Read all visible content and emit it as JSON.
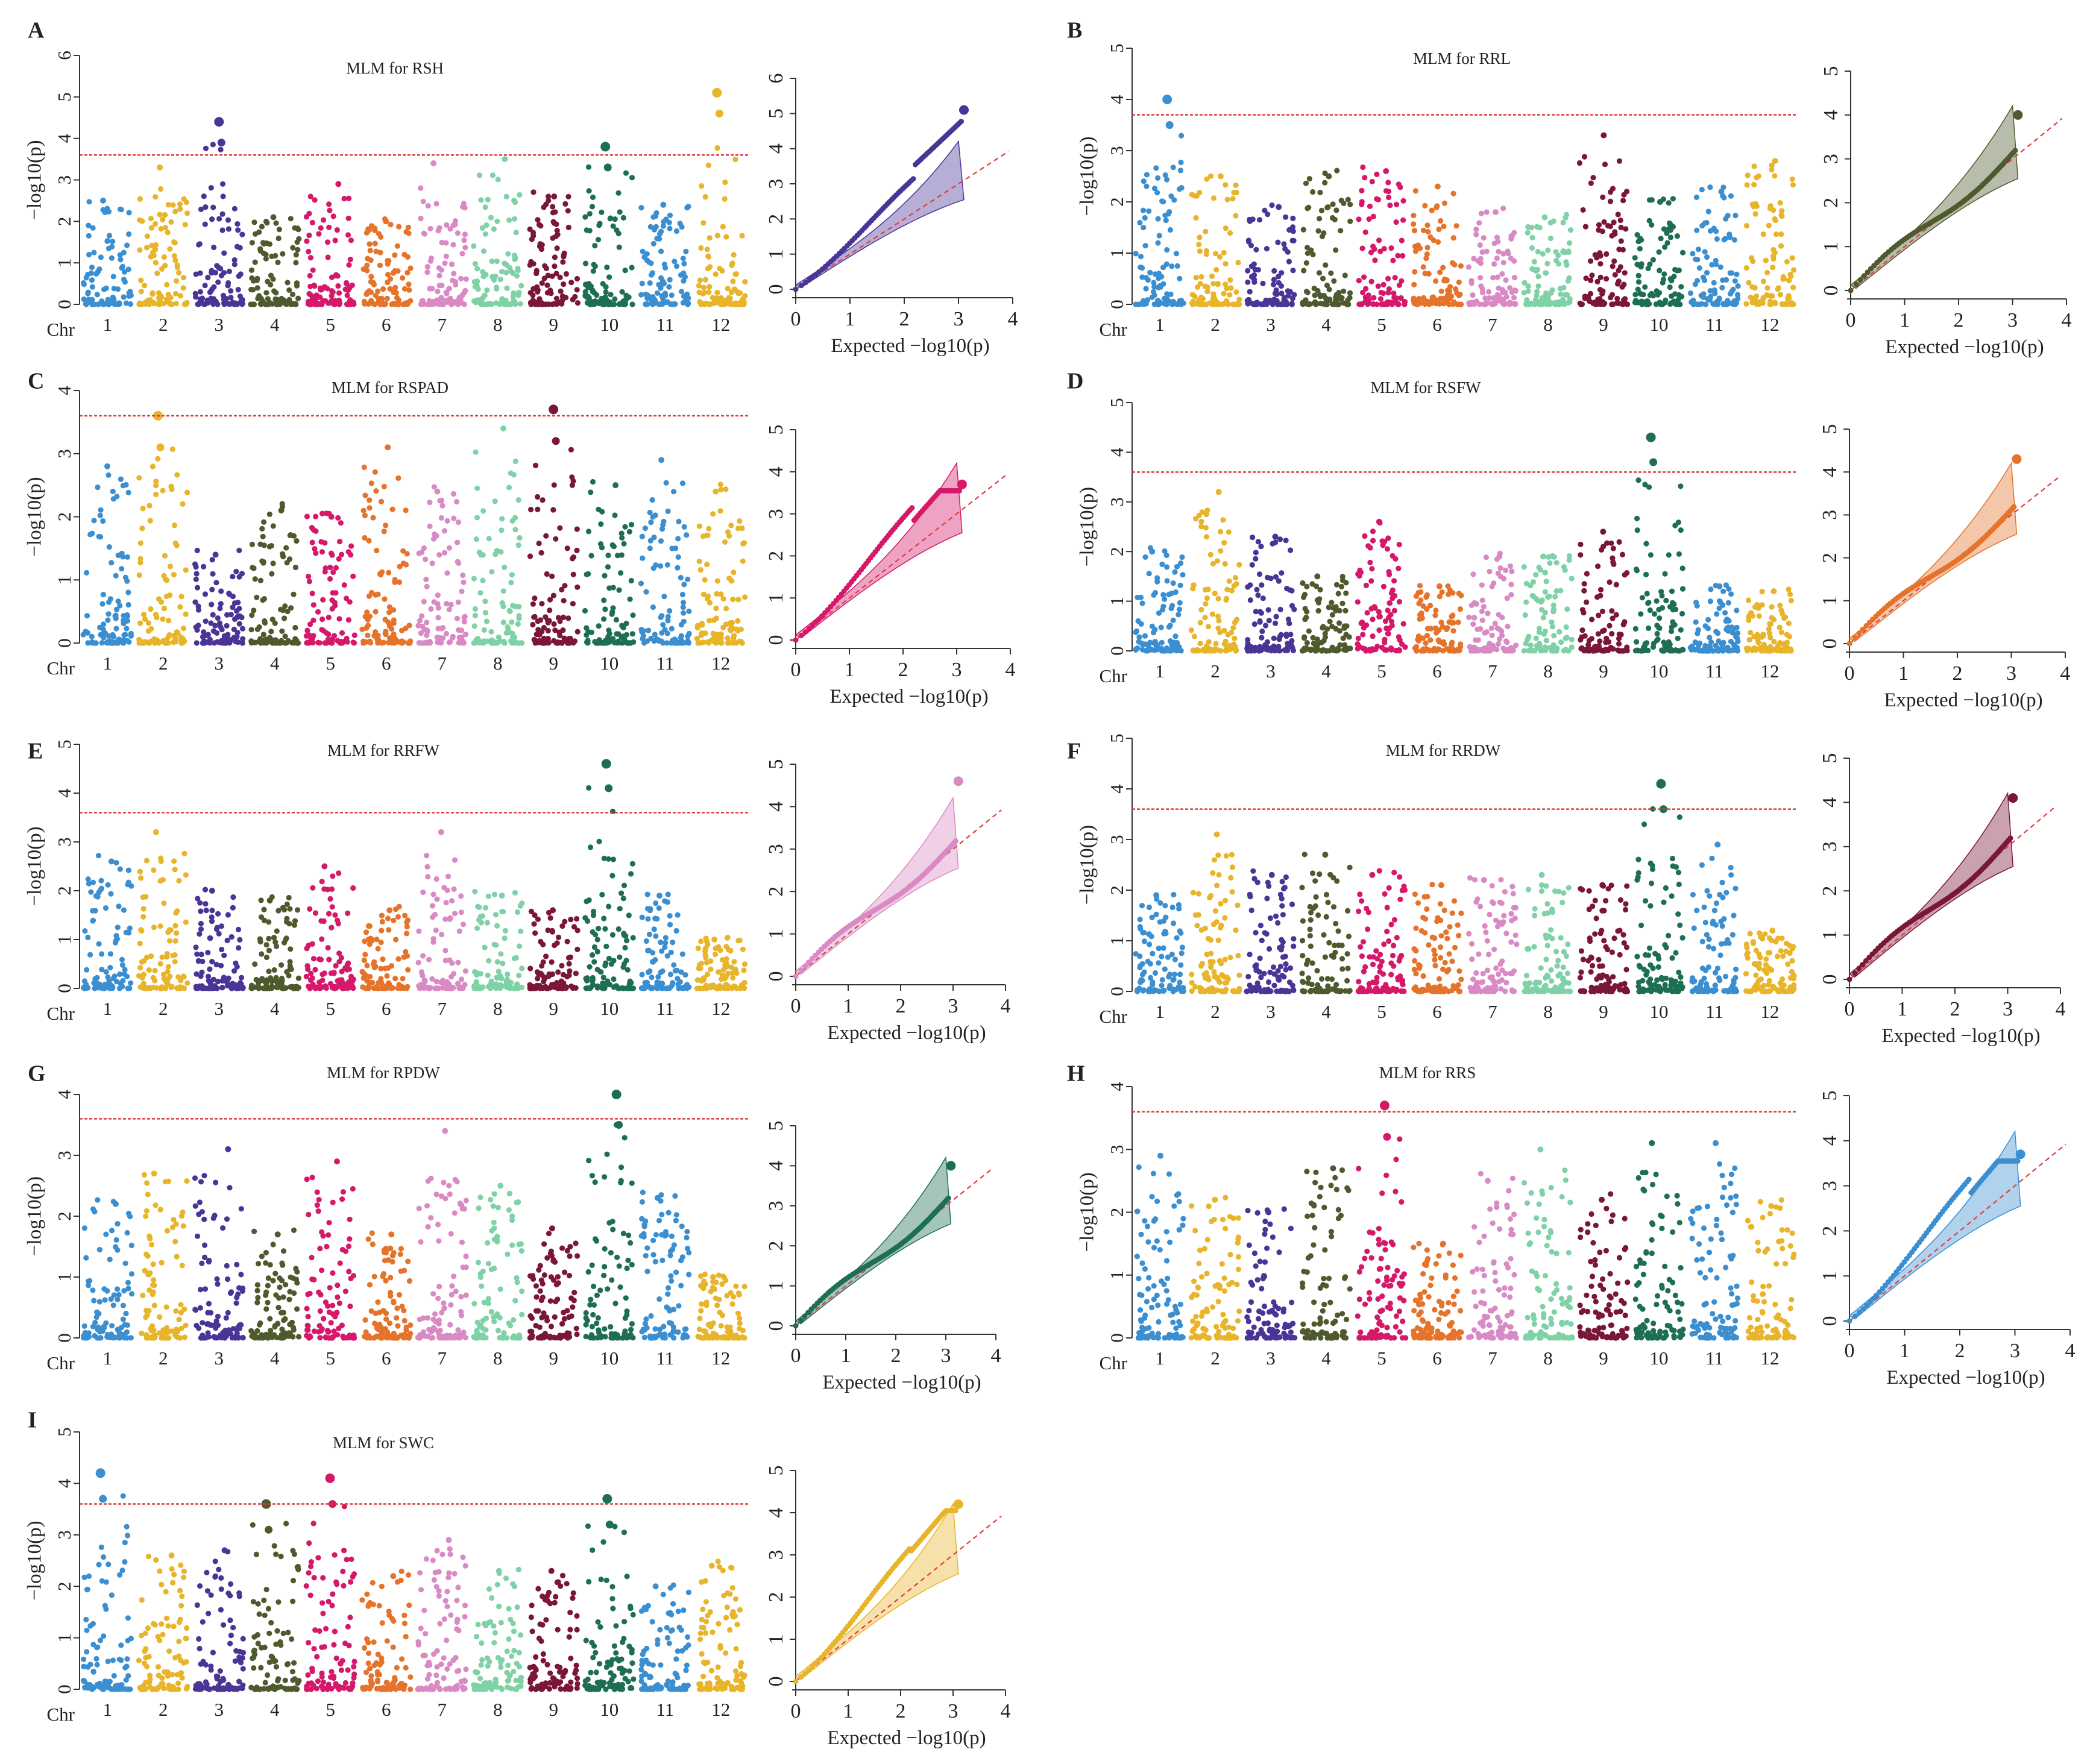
{
  "figure": {
    "chromosome_colors": [
      "#3b8fd1",
      "#e8b42a",
      "#4a3596",
      "#4e5a2e",
      "#d6186b",
      "#e5732a",
      "#d98ac4",
      "#7fd1a6",
      "#7a1638",
      "#1e6e55",
      "#3b8fd1",
      "#e8b42a"
    ],
    "threshold_color": "#e03b3b",
    "chr_axis_label": "Chr",
    "chromosomes": [
      "1",
      "2",
      "3",
      "4",
      "5",
      "6",
      "7",
      "8",
      "9",
      "10",
      "11",
      "12"
    ],
    "ylabel": "−log10(p)",
    "qq_xlabel": "Expected −log10(p)",
    "qq_xticks": [
      "0",
      "1",
      "2",
      "3",
      "4"
    ]
  },
  "chart_data": [
    {
      "panel": "A",
      "type": "scatter",
      "title": "MLM for RSH",
      "ylim": [
        0,
        6
      ],
      "yticks": [
        "0",
        "1",
        "2",
        "3",
        "4",
        "5",
        "6"
      ],
      "threshold": 3.6,
      "peaks": [
        [
          1,
          2.5
        ],
        [
          2,
          3.3
        ],
        [
          3,
          4.4
        ],
        [
          4,
          2.1
        ],
        [
          5,
          2.9
        ],
        [
          6,
          2.0
        ],
        [
          7,
          3.4
        ],
        [
          8,
          3.5
        ],
        [
          9,
          2.6
        ],
        [
          10,
          3.8
        ],
        [
          11,
          2.4
        ],
        [
          12,
          5.1
        ]
      ],
      "qq": {
        "ylim": [
          0,
          6
        ],
        "yticks": [
          "0",
          "1",
          "2",
          "3",
          "4",
          "5",
          "6"
        ],
        "color": "#4a3596",
        "max_obs": 5.1,
        "inflated": true
      }
    },
    {
      "panel": "B",
      "type": "scatter",
      "title": "MLM for RRL",
      "ylim": [
        0,
        5
      ],
      "yticks": [
        "0",
        "1",
        "2",
        "3",
        "4",
        "5"
      ],
      "threshold": 3.7,
      "peaks": [
        [
          1,
          4.0
        ],
        [
          2,
          2.5
        ],
        [
          3,
          1.9
        ],
        [
          4,
          2.5
        ],
        [
          5,
          2.6
        ],
        [
          6,
          2.3
        ],
        [
          7,
          1.8
        ],
        [
          8,
          1.7
        ],
        [
          9,
          3.3
        ],
        [
          10,
          2.0
        ],
        [
          11,
          2.2
        ],
        [
          12,
          2.8
        ]
      ],
      "qq": {
        "ylim": [
          0,
          5
        ],
        "yticks": [
          "0",
          "1",
          "2",
          "3",
          "4",
          "5"
        ],
        "color": "#4e5a2e",
        "max_obs": 4.0,
        "inflated": false
      }
    },
    {
      "panel": "C",
      "type": "scatter",
      "title": "MLM for RSPAD",
      "ylim": [
        0,
        4
      ],
      "yticks": [
        "0",
        "1",
        "2",
        "3",
        "4"
      ],
      "threshold": 3.6,
      "peaks": [
        [
          1,
          2.8
        ],
        [
          2,
          3.6
        ],
        [
          3,
          1.4
        ],
        [
          4,
          2.1
        ],
        [
          5,
          2.0
        ],
        [
          6,
          3.1
        ],
        [
          7,
          2.4
        ],
        [
          8,
          3.4
        ],
        [
          9,
          3.7
        ],
        [
          10,
          2.5
        ],
        [
          11,
          2.9
        ],
        [
          12,
          2.4
        ]
      ],
      "qq": {
        "ylim": [
          0,
          5
        ],
        "yticks": [
          "0",
          "1",
          "2",
          "3",
          "4",
          "5"
        ],
        "color": "#d6186b",
        "max_obs": 3.7,
        "inflated": true
      }
    },
    {
      "panel": "D",
      "type": "scatter",
      "title": "MLM for RSFW",
      "ylim": [
        0,
        5
      ],
      "yticks": [
        "0",
        "1",
        "2",
        "3",
        "4",
        "5"
      ],
      "threshold": 3.6,
      "peaks": [
        [
          1,
          2.0
        ],
        [
          2,
          3.2
        ],
        [
          3,
          2.3
        ],
        [
          4,
          1.5
        ],
        [
          5,
          2.6
        ],
        [
          6,
          1.3
        ],
        [
          7,
          1.9
        ],
        [
          8,
          1.9
        ],
        [
          9,
          2.4
        ],
        [
          10,
          4.3
        ],
        [
          11,
          1.3
        ],
        [
          12,
          1.2
        ]
      ],
      "qq": {
        "ylim": [
          0,
          5
        ],
        "yticks": [
          "0",
          "1",
          "2",
          "3",
          "4",
          "5"
        ],
        "color": "#e5732a",
        "max_obs": 4.3,
        "inflated": false
      }
    },
    {
      "panel": "E",
      "type": "scatter",
      "title": "MLM for RRFW",
      "ylim": [
        0,
        5
      ],
      "yticks": [
        "0",
        "1",
        "2",
        "3",
        "4",
        "5"
      ],
      "threshold": 3.6,
      "peaks": [
        [
          1,
          2.6
        ],
        [
          2,
          3.2
        ],
        [
          3,
          2.0
        ],
        [
          4,
          1.8
        ],
        [
          5,
          2.5
        ],
        [
          6,
          1.6
        ],
        [
          7,
          3.2
        ],
        [
          8,
          1.9
        ],
        [
          9,
          1.6
        ],
        [
          10,
          4.6
        ],
        [
          11,
          1.9
        ],
        [
          12,
          1.0
        ]
      ],
      "qq": {
        "ylim": [
          0,
          5
        ],
        "yticks": [
          "0",
          "1",
          "2",
          "3",
          "4",
          "5"
        ],
        "color": "#d98ac4",
        "max_obs": 4.6,
        "inflated": false
      }
    },
    {
      "panel": "F",
      "type": "scatter",
      "title": "MLM for RRDW",
      "ylim": [
        0,
        5
      ],
      "yticks": [
        "0",
        "1",
        "2",
        "3",
        "4",
        "5"
      ],
      "threshold": 3.6,
      "peaks": [
        [
          1,
          1.9
        ],
        [
          2,
          3.1
        ],
        [
          3,
          2.3
        ],
        [
          4,
          2.7
        ],
        [
          5,
          2.3
        ],
        [
          6,
          2.1
        ],
        [
          7,
          2.2
        ],
        [
          8,
          2.3
        ],
        [
          9,
          2.1
        ],
        [
          10,
          4.1
        ],
        [
          11,
          2.9
        ],
        [
          12,
          1.2
        ]
      ],
      "qq": {
        "ylim": [
          0,
          5
        ],
        "yticks": [
          "0",
          "1",
          "2",
          "3",
          "4",
          "5"
        ],
        "color": "#7a1638",
        "max_obs": 4.1,
        "inflated": false
      }
    },
    {
      "panel": "G",
      "type": "scatter",
      "title": "MLM for RPDW",
      "ylim": [
        0,
        4
      ],
      "yticks": [
        "0",
        "1",
        "2",
        "3",
        "4"
      ],
      "threshold": 3.6,
      "peaks": [
        [
          1,
          2.2
        ],
        [
          2,
          2.7
        ],
        [
          3,
          3.1
        ],
        [
          4,
          1.7
        ],
        [
          5,
          2.9
        ],
        [
          6,
          1.7
        ],
        [
          7,
          3.4
        ],
        [
          8,
          2.5
        ],
        [
          9,
          1.8
        ],
        [
          10,
          4.0
        ],
        [
          11,
          2.3
        ],
        [
          12,
          1.0
        ]
      ],
      "qq": {
        "ylim": [
          0,
          5
        ],
        "yticks": [
          "0",
          "1",
          "2",
          "3",
          "4",
          "5"
        ],
        "color": "#1e6e55",
        "max_obs": 4.0,
        "inflated": false
      }
    },
    {
      "panel": "H",
      "type": "scatter",
      "title": "MLM for RRS",
      "ylim": [
        0,
        4
      ],
      "yticks": [
        "0",
        "1",
        "2",
        "3",
        "4"
      ],
      "threshold": 3.6,
      "peaks": [
        [
          1,
          2.9
        ],
        [
          2,
          2.2
        ],
        [
          3,
          2.0
        ],
        [
          4,
          2.7
        ],
        [
          5,
          3.7
        ],
        [
          6,
          1.5
        ],
        [
          7,
          2.5
        ],
        [
          8,
          3.0
        ],
        [
          9,
          2.2
        ],
        [
          10,
          3.1
        ],
        [
          11,
          3.1
        ],
        [
          12,
          2.1
        ]
      ],
      "qq": {
        "ylim": [
          0,
          5
        ],
        "yticks": [
          "0",
          "1",
          "2",
          "3",
          "4",
          "5"
        ],
        "color": "#3b8fd1",
        "max_obs": 3.7,
        "inflated": true
      }
    },
    {
      "panel": "I",
      "type": "scatter",
      "title": "MLM for SWC",
      "ylim": [
        0,
        5
      ],
      "yticks": [
        "0",
        "1",
        "2",
        "3",
        "4",
        "5"
      ],
      "threshold": 3.6,
      "peaks": [
        [
          1,
          4.2
        ],
        [
          2,
          2.6
        ],
        [
          3,
          2.7
        ],
        [
          4,
          3.6
        ],
        [
          5,
          4.1
        ],
        [
          6,
          2.2
        ],
        [
          7,
          2.9
        ],
        [
          8,
          2.3
        ],
        [
          9,
          2.3
        ],
        [
          10,
          3.7
        ],
        [
          11,
          2.0
        ],
        [
          12,
          2.4
        ]
      ],
      "qq": {
        "ylim": [
          0,
          5
        ],
        "yticks": [
          "0",
          "1",
          "2",
          "3",
          "4",
          "5"
        ],
        "color": "#e8b42a",
        "max_obs": 4.2,
        "inflated": true
      }
    }
  ]
}
